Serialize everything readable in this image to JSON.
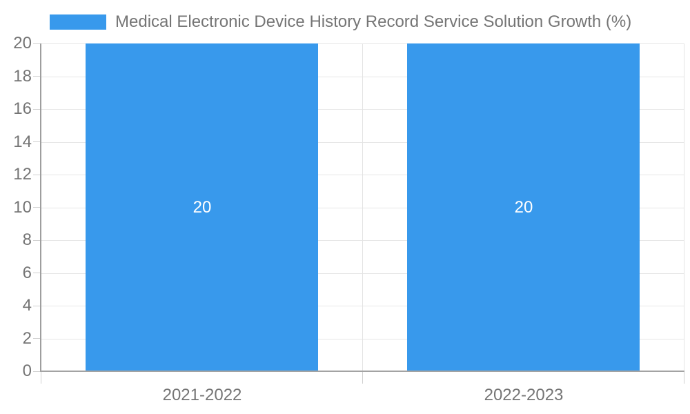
{
  "legend": {
    "label": "Medical Electronic Device History Record Service Solution Growth (%)"
  },
  "chart_data": {
    "type": "bar",
    "title": "Medical Electronic Device History Record Service Solution Growth (%)",
    "categories": [
      "2021-2022",
      "2022-2023"
    ],
    "values": [
      20,
      20
    ],
    "bar_labels": [
      "20",
      "20"
    ],
    "xlabel": "",
    "ylabel": "",
    "ylim": [
      0,
      20
    ],
    "ytick_step": 2,
    "yticks": [
      0,
      2,
      4,
      6,
      8,
      10,
      12,
      14,
      16,
      18,
      20
    ],
    "grid": true,
    "legend_position": "top-left",
    "series_name": "Medical Electronic Device History Record Service Solution Growth (%)"
  },
  "colors": {
    "bar": "#3899ec",
    "bar_label_text": "#ffffff",
    "axis_text": "#757575",
    "gridline": "#e6e6e6",
    "axis_line": "#9e9e9e",
    "background": "#ffffff"
  }
}
